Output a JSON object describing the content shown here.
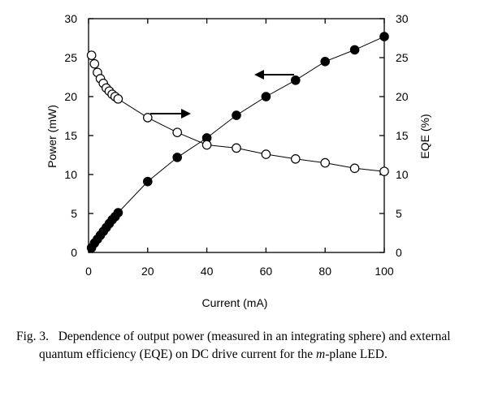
{
  "chart_data": {
    "type": "scatter",
    "xlabel": "Current (mA)",
    "ylabel": "Power (mW)",
    "y2label": "EQE (%)",
    "xlim": [
      0,
      100
    ],
    "ylim": [
      0,
      30
    ],
    "y2lim": [
      0,
      30
    ],
    "x_ticks": [
      "0",
      "20",
      "40",
      "60",
      "80",
      "100"
    ],
    "y_ticks": [
      "0",
      "5",
      "10",
      "15",
      "20",
      "25",
      "30"
    ],
    "y2_ticks": [
      "0",
      "5",
      "10",
      "15",
      "20",
      "25",
      "30"
    ],
    "grid": false,
    "series": [
      {
        "marker": "filled-circle",
        "axis": "left",
        "x": [
          1,
          2,
          3,
          4,
          5,
          6,
          7,
          8,
          9,
          10,
          20,
          30,
          40,
          50,
          60,
          70,
          80,
          90,
          100
        ],
        "y": [
          0.6,
          1.2,
          1.7,
          2.2,
          2.7,
          3.2,
          3.7,
          4.2,
          4.6,
          5.1,
          9.1,
          12.2,
          14.7,
          17.6,
          20.0,
          22.1,
          24.5,
          26.0,
          27.7
        ]
      },
      {
        "marker": "open-circle",
        "axis": "right",
        "x": [
          1,
          2,
          3,
          4,
          5,
          6,
          7,
          8,
          9,
          10,
          20,
          30,
          40,
          50,
          60,
          70,
          80,
          90,
          100
        ],
        "y": [
          25.3,
          24.2,
          23.1,
          22.3,
          21.7,
          21.1,
          20.7,
          20.3,
          20.0,
          19.7,
          17.3,
          15.4,
          13.8,
          13.4,
          12.6,
          12.0,
          11.5,
          10.8,
          10.4
        ]
      }
    ]
  },
  "caption": {
    "fig_label": "Fig. 3.",
    "text_before_italic": "Dependence of output power (measured in an integrating sphere) and external quantum efficiency (EQE) on DC drive current for the ",
    "italic": "m",
    "text_after_italic": "-plane LED."
  }
}
